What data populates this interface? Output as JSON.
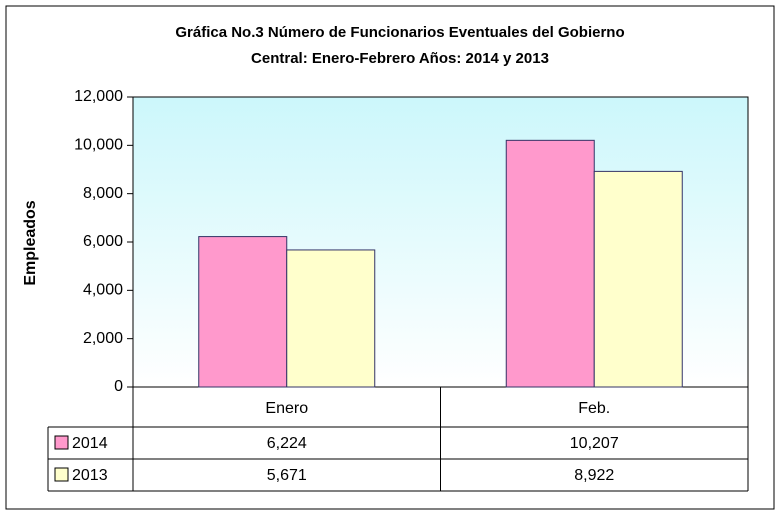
{
  "chart_data": {
    "type": "bar",
    "title": [
      "Gráfica No.3 Número de Funcionarios Eventuales del Gobierno",
      "Central: Enero-Febrero Años: 2014 y 2013"
    ],
    "y_label": "Empleados",
    "categories": [
      "Enero",
      "Feb."
    ],
    "series": [
      {
        "name": "2014",
        "color": "#ff99cc",
        "values": [
          6224,
          10207
        ],
        "value_labels": [
          "6,224",
          "10,207"
        ]
      },
      {
        "name": "2013",
        "color": "#ffffcc",
        "values": [
          5671,
          8922
        ],
        "value_labels": [
          "5,671",
          "8,922"
        ]
      }
    ],
    "ylim": [
      0,
      12000
    ],
    "yticks": [
      0,
      {
        "value": 2000,
        "label": "2,000"
      },
      {
        "value": 4000,
        "label": "4,000"
      },
      {
        "value": 6000,
        "label": "6,000"
      },
      {
        "value": 8000,
        "label": "8,000"
      },
      {
        "value": 10000,
        "label": "10,000"
      },
      {
        "value": 12000,
        "label": "12,000"
      }
    ]
  }
}
